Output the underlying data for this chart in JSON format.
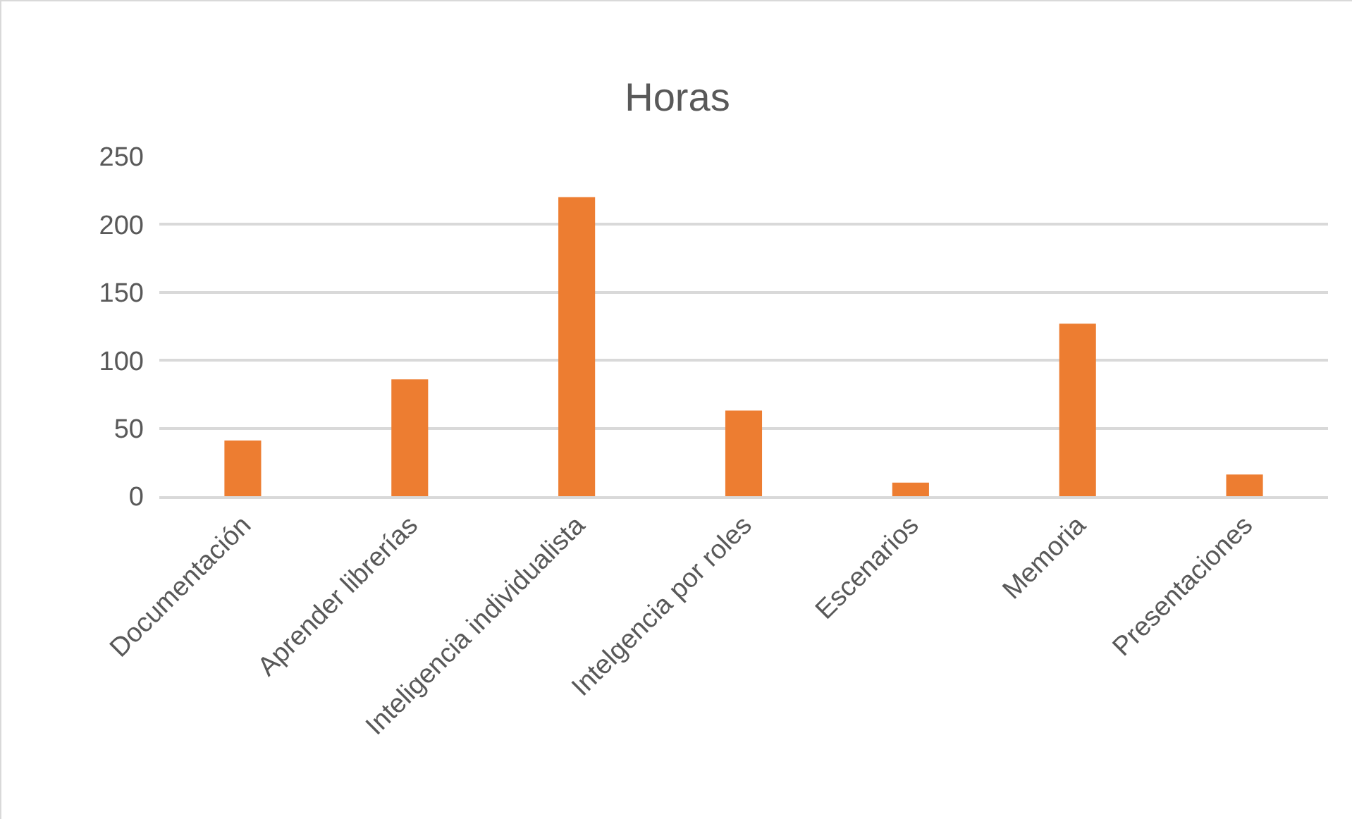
{
  "chart_data": {
    "type": "bar",
    "title": "Horas",
    "categories": [
      "Documentación",
      "Aprender librerías",
      "Inteligencia individualista",
      "Intelgencia por roles",
      "Escenarios",
      "Memoria",
      "Presentaciones"
    ],
    "values": [
      41,
      86,
      220,
      63,
      10,
      127,
      16
    ],
    "color": "#ed7d31",
    "ylim": [
      0,
      250
    ],
    "yticks": [
      0,
      50,
      100,
      150,
      200,
      250
    ],
    "grid": "y",
    "legend": false
  }
}
